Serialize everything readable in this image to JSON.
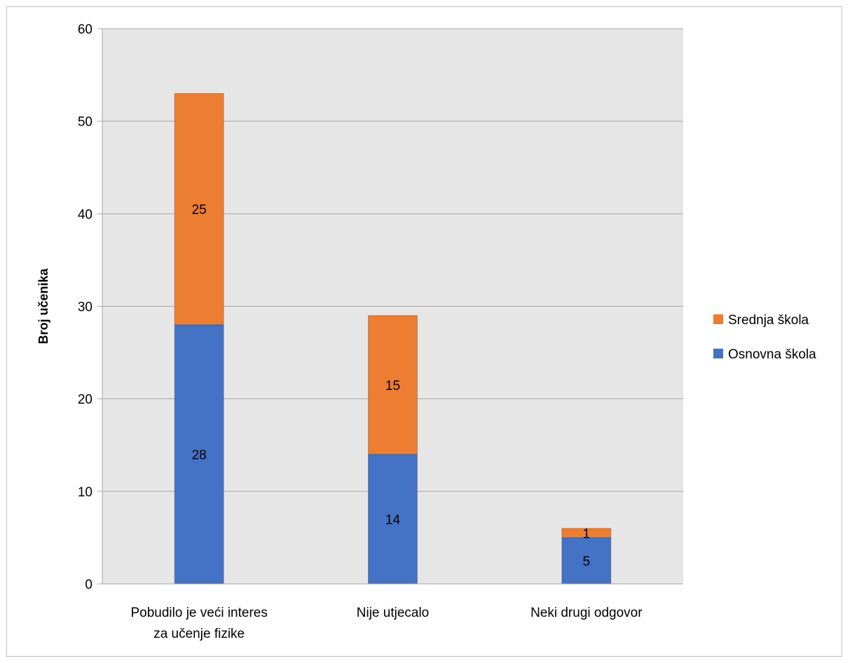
{
  "chart_data": {
    "type": "bar",
    "stacked": true,
    "categories": [
      [
        "Pobudilo je veći interes",
        "za učenje fizike"
      ],
      [
        "Nije utjecalo"
      ],
      [
        "Neki drugi odgovor"
      ]
    ],
    "series": [
      {
        "name": "Osnovna škola",
        "values": [
          28,
          14,
          5
        ],
        "color": "#4472c4"
      },
      {
        "name": "Srednja škola",
        "values": [
          25,
          15,
          1
        ],
        "color": "#ed7d31"
      }
    ],
    "ylabel": "Broj učenika",
    "ylim": [
      0,
      60
    ],
    "yticks": [
      0,
      10,
      20,
      30,
      40,
      50,
      60
    ],
    "grid": true,
    "legend": "right",
    "plot_background": "#e7e6e6",
    "legend_order": [
      1,
      0
    ]
  }
}
